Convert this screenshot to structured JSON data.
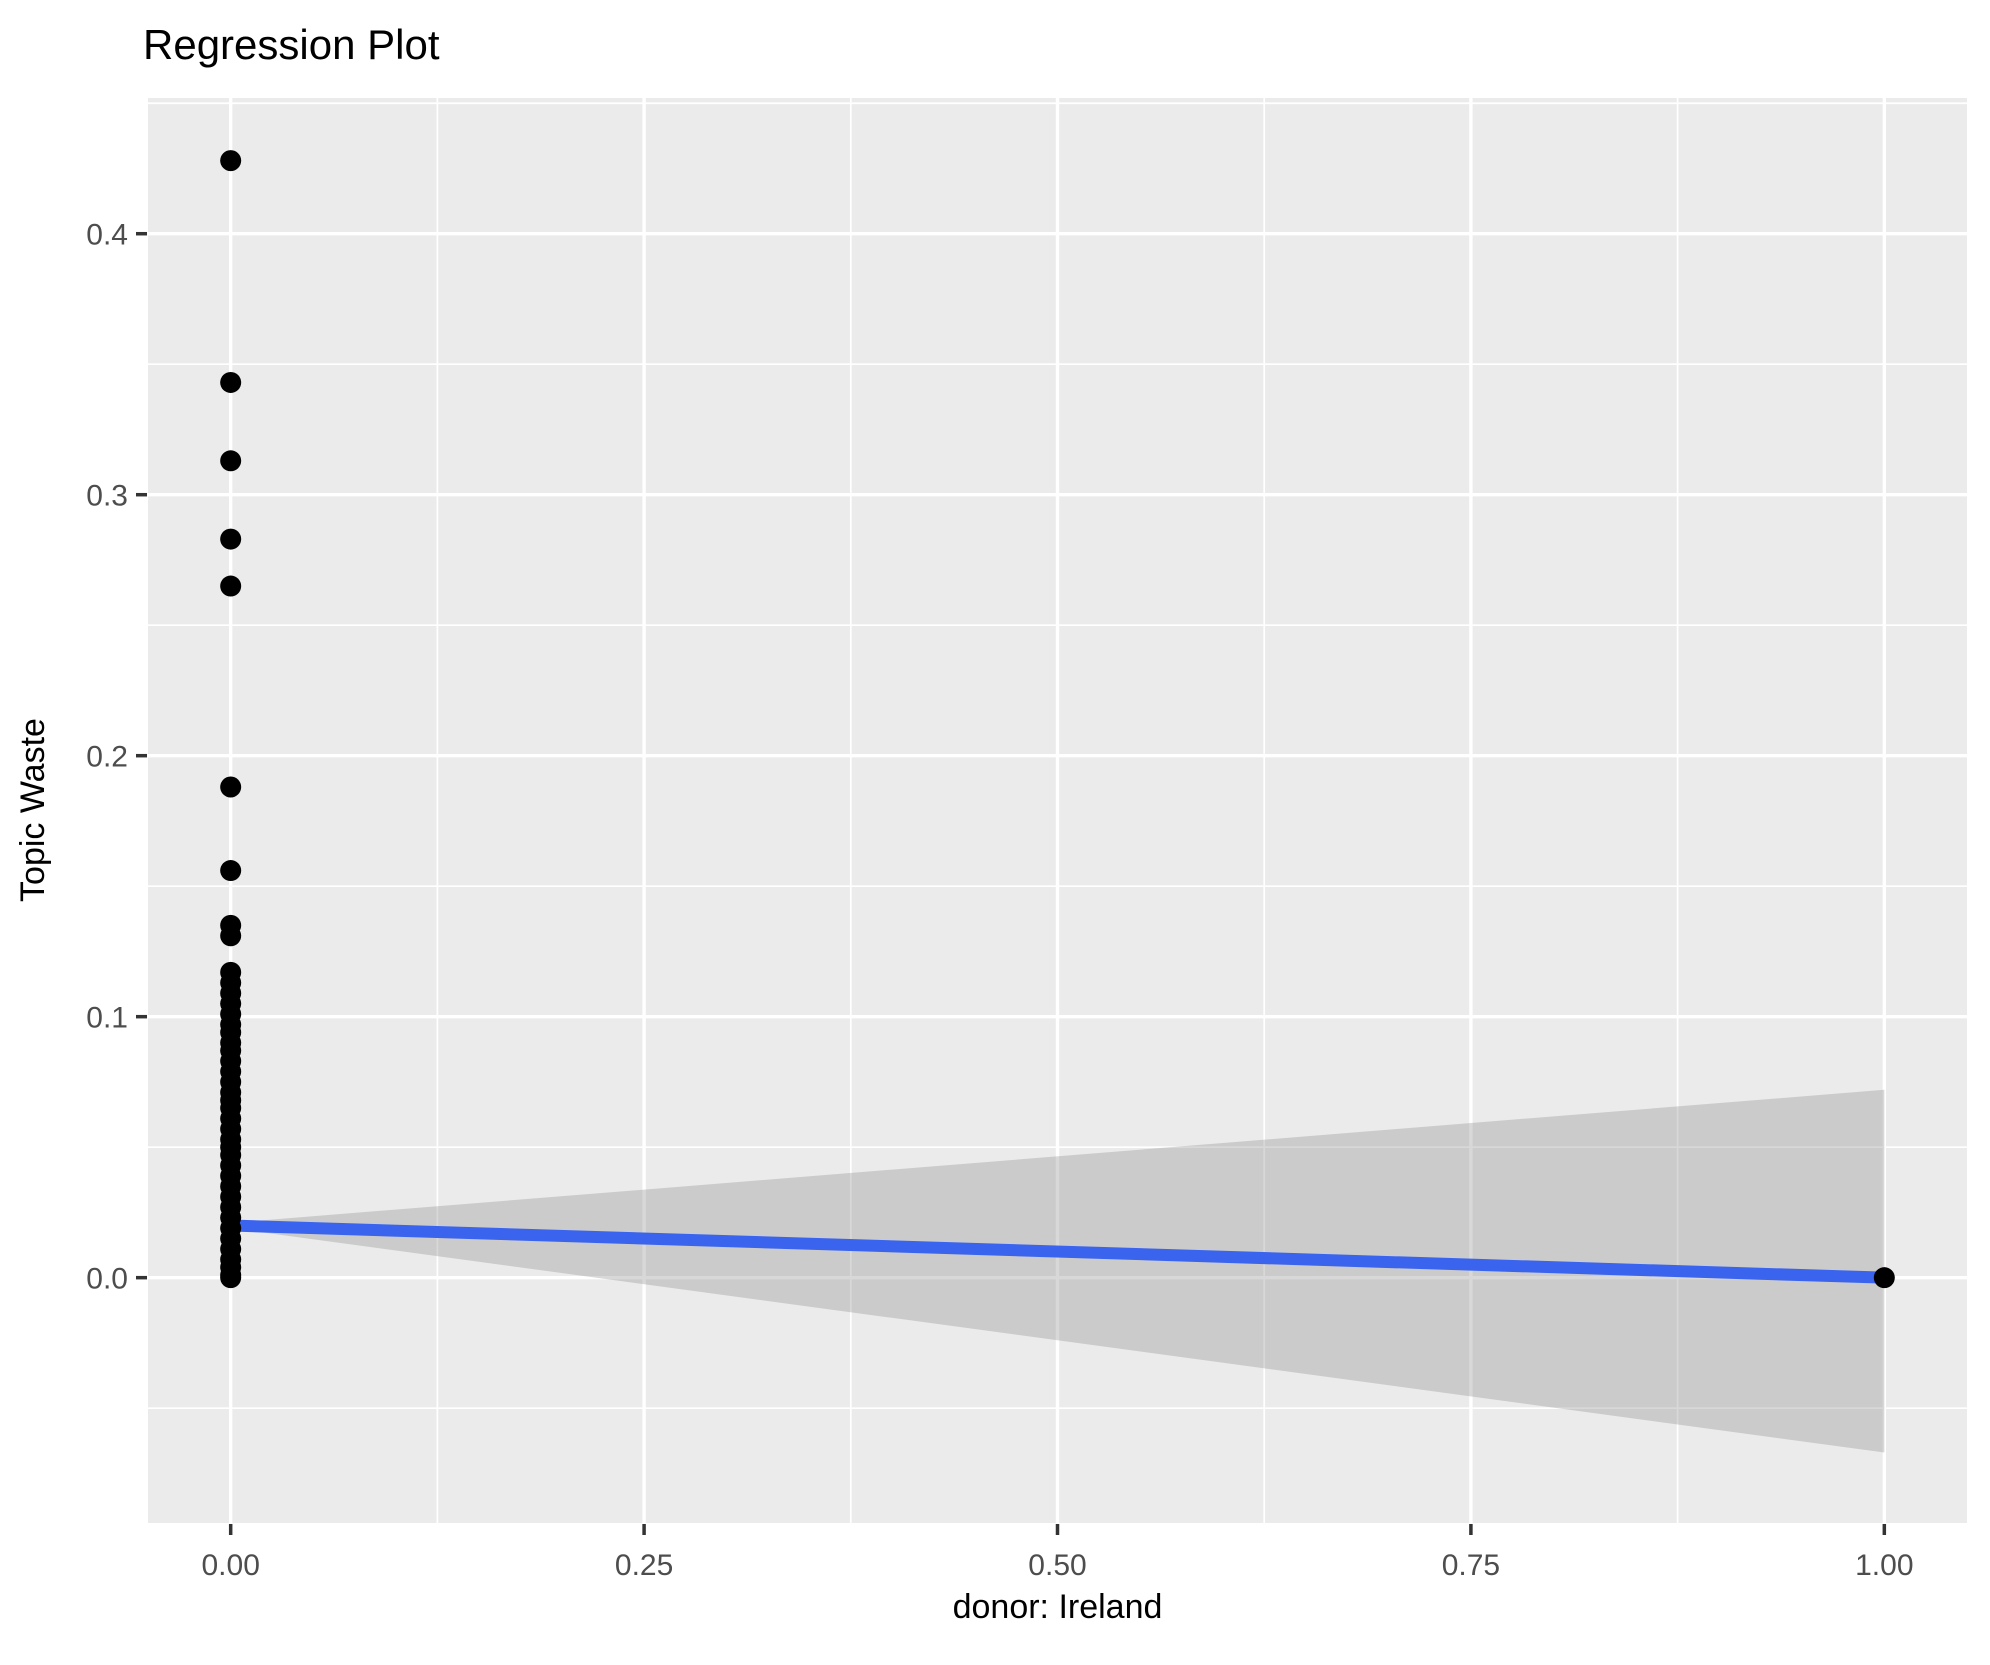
{
  "title": "Regression Plot",
  "chart_data": {
    "type": "scatter",
    "title": "Regression Plot",
    "xlabel": "donor: Ireland",
    "ylabel": "Topic Waste",
    "xlim": [
      -0.05,
      1.05
    ],
    "ylim": [
      -0.094,
      0.452
    ],
    "legend": "none",
    "grid": {
      "style": "ggplot-gray-panel-white-gridlines",
      "major": true,
      "minor": true
    },
    "x_ticks": {
      "values": [
        0.0,
        0.25,
        0.5,
        0.75,
        1.0
      ],
      "labels": [
        "0.00",
        "0.25",
        "0.50",
        "0.75",
        "1.00"
      ]
    },
    "y_ticks": {
      "values": [
        0.0,
        0.1,
        0.2,
        0.3,
        0.4
      ],
      "labels": [
        "0.0",
        "0.1",
        "0.2",
        "0.3",
        "0.4"
      ]
    },
    "x_minor_gridlines": [
      0.125,
      0.375,
      0.625,
      0.875
    ],
    "y_minor_gridlines": [
      -0.05,
      0.05,
      0.15,
      0.25,
      0.35,
      0.45
    ],
    "series": [
      {
        "name": "observations at donor=0",
        "type": "points",
        "x_constant": 0.0,
        "y": [
          0.428,
          0.343,
          0.313,
          0.283,
          0.265,
          0.188,
          0.156,
          0.135,
          0.131,
          0.117,
          0.113,
          0.109,
          0.105,
          0.101,
          0.097,
          0.094,
          0.09,
          0.087,
          0.083,
          0.079,
          0.075,
          0.071,
          0.068,
          0.065,
          0.061,
          0.057,
          0.053,
          0.05,
          0.047,
          0.043,
          0.039,
          0.035,
          0.031,
          0.027,
          0.023,
          0.019,
          0.015,
          0.011,
          0.007,
          0.004,
          0.001,
          0.0
        ]
      },
      {
        "name": "observations at donor=1",
        "type": "points",
        "x_constant": 1.0,
        "y": [
          0.0
        ]
      },
      {
        "name": "regression fit",
        "type": "line",
        "x": [
          0.0,
          1.0
        ],
        "y": [
          0.02,
          0.0
        ]
      },
      {
        "name": "confidence band",
        "type": "band",
        "x": [
          0.0,
          1.0
        ],
        "upper": [
          0.021,
          0.072
        ],
        "lower": [
          0.019,
          -0.067
        ]
      }
    ],
    "colors": {
      "panel_background": "#EBEBEB",
      "gridline": "#FFFFFF",
      "point": "#000000",
      "fit_line": "#3A63EE",
      "band_fill": "#999999",
      "band_opacity": 0.38,
      "tick_mark": "#333333",
      "tick_label": "#4D4D4D",
      "title_text": "#000000"
    }
  }
}
